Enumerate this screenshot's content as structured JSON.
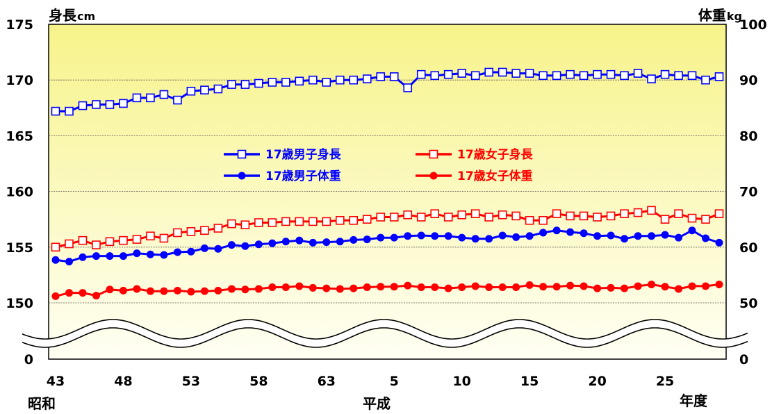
{
  "chart_data": {
    "type": "line",
    "y_left": {
      "label_main": "身長",
      "label_unit": "cm",
      "ticks": [
        "175",
        "170",
        "165",
        "160",
        "155",
        "150",
        "0"
      ],
      "tick_values": [
        175,
        170,
        165,
        160,
        155,
        150
      ],
      "range": [
        150,
        175
      ]
    },
    "y_right": {
      "label_main": "体重",
      "label_unit": "kg",
      "ticks": [
        "100",
        "90",
        "80",
        "70",
        "60",
        "50",
        "0"
      ],
      "tick_values": [
        100,
        90,
        80,
        70,
        60,
        50
      ],
      "range": [
        50,
        100
      ]
    },
    "x": {
      "tick_labels": [
        "43",
        "48",
        "53",
        "58",
        "63",
        "5",
        "10",
        "15",
        "20",
        "25"
      ],
      "era_labels": [
        "昭和",
        "平成",
        "年度"
      ],
      "point_count": 50
    },
    "axis_break": true,
    "grid": true,
    "legend_position": "center",
    "series": [
      {
        "name": "17歳男子身長",
        "axis": "left",
        "color": "#0000ff",
        "marker": "open-square",
        "values": [
          167.2,
          167.2,
          167.7,
          167.8,
          167.8,
          167.9,
          168.4,
          168.4,
          168.7,
          168.2,
          169.0,
          169.1,
          169.2,
          169.6,
          169.6,
          169.7,
          169.8,
          169.8,
          169.9,
          170.0,
          169.8,
          170.0,
          170.0,
          170.1,
          170.3,
          170.3,
          169.3,
          170.5,
          170.4,
          170.5,
          170.6,
          170.4,
          170.7,
          170.7,
          170.6,
          170.6,
          170.4,
          170.4,
          170.5,
          170.4,
          170.5,
          170.5,
          170.4,
          170.6,
          170.1,
          170.5,
          170.4,
          170.4,
          170.0,
          170.3
        ]
      },
      {
        "name": "17歳女子身長",
        "axis": "left",
        "color": "#ff0000",
        "marker": "open-square",
        "values": [
          155.0,
          155.3,
          155.6,
          155.2,
          155.5,
          155.6,
          155.7,
          156.0,
          155.8,
          156.3,
          156.4,
          156.5,
          156.7,
          157.1,
          157.0,
          157.2,
          157.2,
          157.3,
          157.3,
          157.3,
          157.3,
          157.4,
          157.4,
          157.5,
          157.7,
          157.7,
          157.9,
          157.7,
          158.0,
          157.7,
          157.9,
          158.0,
          157.7,
          157.9,
          157.8,
          157.4,
          157.4,
          158.0,
          157.8,
          157.8,
          157.7,
          157.8,
          158.0,
          158.1,
          158.3,
          157.5,
          158.0,
          157.6,
          157.5,
          158.0
        ]
      },
      {
        "name": "17歳男子体重",
        "axis": "right",
        "color": "#0000ff",
        "marker": "filled-circle",
        "values": [
          57.7,
          57.4,
          58.2,
          58.4,
          58.4,
          58.4,
          58.9,
          58.7,
          58.6,
          59.1,
          59.2,
          59.8,
          59.7,
          60.4,
          60.2,
          60.5,
          60.7,
          61.0,
          61.2,
          60.8,
          60.9,
          61.0,
          61.3,
          61.4,
          61.7,
          61.7,
          62.0,
          62.1,
          62.0,
          62.0,
          61.7,
          61.5,
          61.5,
          62.1,
          61.8,
          62.0,
          62.6,
          63.0,
          62.7,
          62.5,
          62.0,
          62.1,
          61.5,
          62.0,
          62.0,
          62.2,
          61.7,
          63.0,
          61.6,
          60.8
        ]
      },
      {
        "name": "17歳女子体重",
        "axis": "right",
        "color": "#ff0000",
        "marker": "filled-circle",
        "values": [
          51.2,
          51.8,
          51.8,
          51.3,
          52.4,
          52.2,
          52.5,
          52.1,
          52.1,
          52.2,
          52.0,
          52.1,
          52.2,
          52.5,
          52.4,
          52.5,
          52.8,
          52.8,
          53.0,
          52.7,
          52.6,
          52.5,
          52.6,
          52.8,
          52.9,
          52.9,
          53.1,
          52.8,
          52.8,
          52.6,
          52.8,
          53.0,
          52.8,
          52.8,
          52.8,
          53.2,
          52.9,
          52.9,
          53.1,
          53.0,
          52.6,
          52.7,
          52.6,
          53.0,
          53.3,
          52.9,
          52.5,
          53.0,
          53.0,
          53.3
        ]
      }
    ]
  }
}
